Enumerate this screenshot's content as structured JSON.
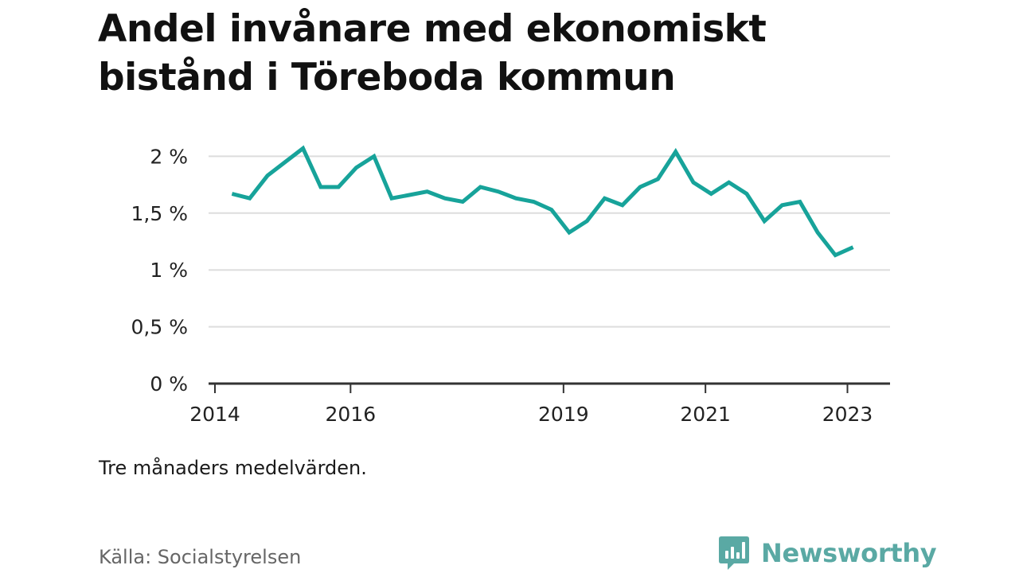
{
  "title_lines": [
    "Andel invånare med ekonomiskt",
    "bistånd i Töreboda kommun"
  ],
  "note": "Tre månaders medelvärden.",
  "source": "Källa: Socialstyrelsen",
  "brand": {
    "name": "Newsworthy",
    "logo_icon": "bar-chart-speech-bubble-icon",
    "color": "#5aa9a4"
  },
  "colors": {
    "line": "#17a39a",
    "grid": "#dddddd",
    "axis": "#333333",
    "tick_label": "#222222"
  },
  "chart_data": {
    "type": "line",
    "title": "Andel invånare med ekonomiskt bistånd i Töreboda kommun",
    "xlabel": "",
    "ylabel": "",
    "ylim": [
      0,
      2.0
    ],
    "xlim": [
      2014.0,
      2023.6
    ],
    "y_ticks": [
      {
        "value": 0,
        "label": "0 %"
      },
      {
        "value": 0.5,
        "label": "0,5 %"
      },
      {
        "value": 1.0,
        "label": "1 %"
      },
      {
        "value": 1.5,
        "label": "1,5 %"
      },
      {
        "value": 2.0,
        "label": "2 %"
      }
    ],
    "x_ticks": [
      {
        "value": 2014,
        "label": "2014"
      },
      {
        "value": 2016,
        "label": "2016"
      },
      {
        "value": 2019,
        "label": "2019"
      },
      {
        "value": 2021,
        "label": "2021"
      },
      {
        "value": 2023,
        "label": "2023"
      }
    ],
    "grid": true,
    "legend": "none",
    "unit": "%",
    "series": [
      {
        "x": [
          2014.33,
          2014.58,
          2014.83,
          2015.08,
          2015.33,
          2015.58,
          2015.83,
          2016.08,
          2016.33,
          2016.58,
          2016.83,
          2017.08,
          2017.33,
          2017.58,
          2017.83,
          2018.08,
          2018.33,
          2018.58,
          2018.83,
          2019.08,
          2019.33,
          2019.58,
          2019.83,
          2020.08,
          2020.33,
          2020.58,
          2020.83,
          2021.08,
          2021.33,
          2021.58,
          2021.83,
          2022.08,
          2022.33,
          2022.58,
          2022.83,
          2023.08
        ],
        "values": [
          1.67,
          1.63,
          1.83,
          1.95,
          2.07,
          1.73,
          1.73,
          1.9,
          2.0,
          1.63,
          1.66,
          1.69,
          1.63,
          1.6,
          1.73,
          1.69,
          1.63,
          1.6,
          1.53,
          1.33,
          1.43,
          1.63,
          1.57,
          1.73,
          1.8,
          2.04,
          1.77,
          1.67,
          1.77,
          1.67,
          1.43,
          1.57,
          1.6,
          1.33,
          1.13,
          1.2
        ]
      }
    ]
  }
}
